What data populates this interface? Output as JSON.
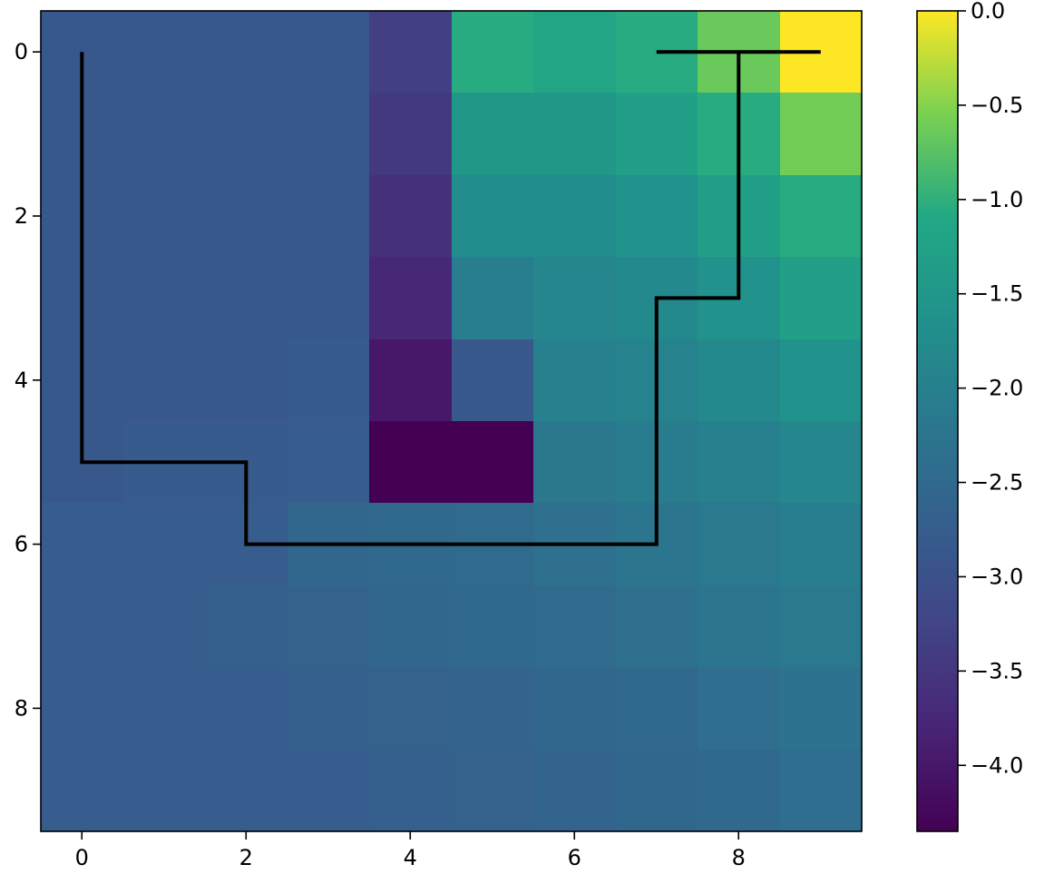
{
  "chart_data": {
    "type": "heatmap",
    "title": "",
    "xlabel": "",
    "ylabel": "",
    "x_ticks": [
      "0",
      "2",
      "4",
      "6",
      "8"
    ],
    "y_ticks": [
      "0",
      "2",
      "4",
      "6",
      "8"
    ],
    "colorbar_ticks": [
      "0.0",
      "−0.5",
      "−1.0",
      "−1.5",
      "−2.0",
      "−2.5",
      "−3.0",
      "−3.5",
      "−4.0"
    ],
    "colorbar_tick_values": [
      0.0,
      -0.5,
      -1.0,
      -1.5,
      -2.0,
      -2.5,
      -3.0,
      -3.5,
      -4.0
    ],
    "colorbar_range": [
      -4.35,
      0.0
    ],
    "colormap": "viridis",
    "grid": false,
    "values": [
      [
        -2.85,
        -2.85,
        -2.85,
        -2.85,
        -3.35,
        -1.05,
        -1.15,
        -1.05,
        -0.65,
        0.0
      ],
      [
        -2.85,
        -2.85,
        -2.85,
        -2.85,
        -3.45,
        -1.5,
        -1.5,
        -1.3,
        -1.05,
        -0.6
      ],
      [
        -2.85,
        -2.85,
        -2.85,
        -2.85,
        -3.6,
        -1.75,
        -1.75,
        -1.6,
        -1.3,
        -1.05
      ],
      [
        -2.85,
        -2.85,
        -2.85,
        -2.85,
        -3.75,
        -2.05,
        -1.85,
        -1.8,
        -1.6,
        -1.3
      ],
      [
        -2.85,
        -2.85,
        -2.85,
        -2.8,
        -4.0,
        -2.85,
        -2.0,
        -1.95,
        -1.8,
        -1.6
      ],
      [
        -2.85,
        -2.8,
        -2.8,
        -2.75,
        -4.35,
        -4.35,
        -2.2,
        -2.1,
        -2.0,
        -1.85
      ],
      [
        -2.75,
        -2.75,
        -2.75,
        -2.55,
        -2.5,
        -2.45,
        -2.35,
        -2.25,
        -2.15,
        -2.05
      ],
      [
        -2.75,
        -2.75,
        -2.7,
        -2.65,
        -2.55,
        -2.5,
        -2.45,
        -2.35,
        -2.25,
        -2.15
      ],
      [
        -2.75,
        -2.75,
        -2.75,
        -2.7,
        -2.65,
        -2.6,
        -2.55,
        -2.5,
        -2.4,
        -2.3
      ],
      [
        -2.75,
        -2.75,
        -2.75,
        -2.75,
        -2.7,
        -2.65,
        -2.6,
        -2.55,
        -2.5,
        -2.4
      ]
    ],
    "path": [
      [
        0,
        0
      ],
      [
        0,
        5
      ],
      [
        2,
        5
      ],
      [
        2,
        6
      ],
      [
        7,
        6
      ],
      [
        7,
        3
      ],
      [
        8,
        3
      ],
      [
        8,
        0
      ],
      [
        7,
        0
      ],
      [
        9,
        0
      ]
    ],
    "path_color": "#000000"
  }
}
